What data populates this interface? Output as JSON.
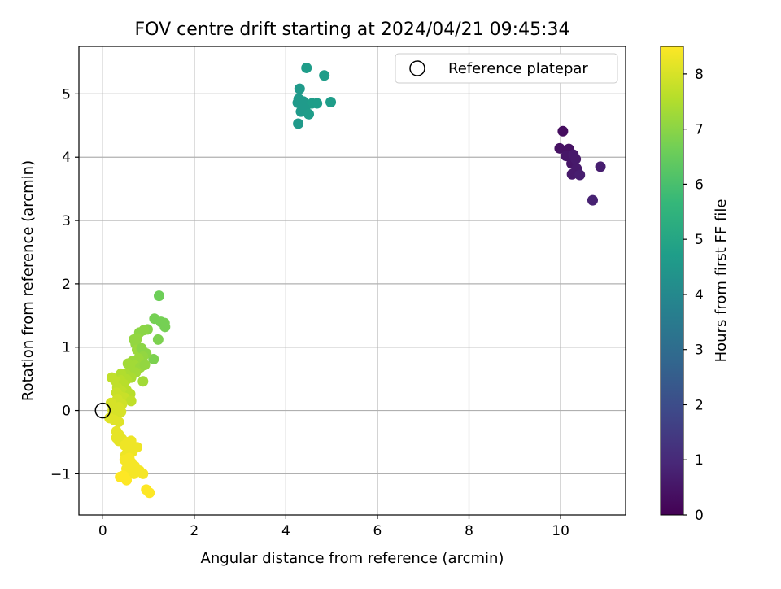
{
  "chart_data": {
    "type": "scatter",
    "title": "FOV centre drift starting at 2024/04/21 09:45:34",
    "xlabel": "Angular distance from reference (arcmin)",
    "ylabel": "Rotation from reference (arcmin)",
    "xlim": [
      -0.52,
      11.42
    ],
    "ylim": [
      -1.65,
      5.75
    ],
    "xticks": [
      0,
      2,
      4,
      6,
      8,
      10
    ],
    "yticks": [
      -1,
      0,
      1,
      2,
      3,
      4,
      5
    ],
    "grid": true,
    "legend": {
      "placement": "top-right",
      "entries": [
        "Reference platepar"
      ]
    },
    "reference_point": {
      "x": 0,
      "y": 0
    },
    "colorbar": {
      "label": "Hours from first FF file",
      "colormap": "viridis",
      "range": [
        0,
        8.5
      ],
      "ticks": [
        0,
        1,
        2,
        3,
        4,
        5,
        6,
        7,
        8
      ],
      "stops": [
        "#440154",
        "#482878",
        "#3e4989",
        "#31688e",
        "#26828e",
        "#1f9e89",
        "#35b779",
        "#6ece58",
        "#b5de2b",
        "#fde725"
      ]
    },
    "series": [
      {
        "points": [
          {
            "x": 10.05,
            "y": 4.41,
            "c": 0.3
          },
          {
            "x": 9.98,
            "y": 4.14,
            "c": 0.4
          },
          {
            "x": 10.18,
            "y": 4.13,
            "c": 0.4
          },
          {
            "x": 10.12,
            "y": 4.02,
            "c": 0.5
          },
          {
            "x": 10.28,
            "y": 4.04,
            "c": 0.6
          },
          {
            "x": 10.24,
            "y": 3.9,
            "c": 0.5
          },
          {
            "x": 10.33,
            "y": 3.97,
            "c": 0.6
          },
          {
            "x": 10.35,
            "y": 3.82,
            "c": 0.6
          },
          {
            "x": 10.25,
            "y": 3.73,
            "c": 0.6
          },
          {
            "x": 10.42,
            "y": 3.72,
            "c": 0.7
          },
          {
            "x": 10.87,
            "y": 3.85,
            "c": 0.7
          },
          {
            "x": 10.7,
            "y": 3.32,
            "c": 0.8
          },
          {
            "x": 4.45,
            "y": 5.41,
            "c": 4.7
          },
          {
            "x": 4.84,
            "y": 5.29,
            "c": 4.7
          },
          {
            "x": 4.3,
            "y": 5.08,
            "c": 4.6
          },
          {
            "x": 4.28,
            "y": 4.92,
            "c": 4.6
          },
          {
            "x": 4.38,
            "y": 4.88,
            "c": 4.6
          },
          {
            "x": 4.26,
            "y": 4.86,
            "c": 4.6
          },
          {
            "x": 4.57,
            "y": 4.85,
            "c": 4.7
          },
          {
            "x": 4.68,
            "y": 4.85,
            "c": 4.7
          },
          {
            "x": 4.98,
            "y": 4.87,
            "c": 4.7
          },
          {
            "x": 4.42,
            "y": 4.76,
            "c": 4.6
          },
          {
            "x": 4.33,
            "y": 4.72,
            "c": 4.6
          },
          {
            "x": 4.5,
            "y": 4.68,
            "c": 4.7
          },
          {
            "x": 4.27,
            "y": 4.53,
            "c": 4.6
          },
          {
            "x": 1.23,
            "y": 1.81,
            "c": 6.6
          },
          {
            "x": 1.13,
            "y": 1.45,
            "c": 6.7
          },
          {
            "x": 1.27,
            "y": 1.4,
            "c": 6.7
          },
          {
            "x": 1.35,
            "y": 1.38,
            "c": 6.7
          },
          {
            "x": 1.36,
            "y": 1.32,
            "c": 6.7
          },
          {
            "x": 1.21,
            "y": 1.12,
            "c": 6.8
          },
          {
            "x": 1.11,
            "y": 0.81,
            "c": 6.8
          },
          {
            "x": 0.98,
            "y": 1.28,
            "c": 6.9
          },
          {
            "x": 0.9,
            "y": 1.27,
            "c": 7.0
          },
          {
            "x": 0.8,
            "y": 1.23,
            "c": 7.0
          },
          {
            "x": 0.75,
            "y": 1.14,
            "c": 7.1
          },
          {
            "x": 0.68,
            "y": 1.12,
            "c": 7.1
          },
          {
            "x": 0.72,
            "y": 1.05,
            "c": 7.1
          },
          {
            "x": 0.75,
            "y": 0.96,
            "c": 7.2
          },
          {
            "x": 0.85,
            "y": 0.98,
            "c": 7.0
          },
          {
            "x": 0.95,
            "y": 0.9,
            "c": 7.0
          },
          {
            "x": 0.88,
            "y": 0.85,
            "c": 7.1
          },
          {
            "x": 0.78,
            "y": 0.82,
            "c": 7.2
          },
          {
            "x": 0.65,
            "y": 0.78,
            "c": 7.2
          },
          {
            "x": 0.55,
            "y": 0.74,
            "c": 7.3
          },
          {
            "x": 0.7,
            "y": 0.71,
            "c": 7.3
          },
          {
            "x": 0.82,
            "y": 0.68,
            "c": 7.2
          },
          {
            "x": 0.92,
            "y": 0.72,
            "c": 7.1
          },
          {
            "x": 0.6,
            "y": 0.62,
            "c": 7.3
          },
          {
            "x": 0.72,
            "y": 0.6,
            "c": 7.3
          },
          {
            "x": 0.5,
            "y": 0.58,
            "c": 7.4
          },
          {
            "x": 0.4,
            "y": 0.58,
            "c": 7.5
          },
          {
            "x": 0.62,
            "y": 0.52,
            "c": 7.4
          },
          {
            "x": 0.88,
            "y": 0.46,
            "c": 7.3
          },
          {
            "x": 0.52,
            "y": 0.49,
            "c": 7.5
          },
          {
            "x": 0.38,
            "y": 0.48,
            "c": 7.6
          },
          {
            "x": 0.2,
            "y": 0.52,
            "c": 7.7
          },
          {
            "x": 0.3,
            "y": 0.45,
            "c": 7.7
          },
          {
            "x": 0.45,
            "y": 0.42,
            "c": 7.6
          },
          {
            "x": 0.32,
            "y": 0.36,
            "c": 7.7
          },
          {
            "x": 0.52,
            "y": 0.32,
            "c": 7.6
          },
          {
            "x": 0.42,
            "y": 0.3,
            "c": 7.7
          },
          {
            "x": 0.3,
            "y": 0.28,
            "c": 7.8
          },
          {
            "x": 0.6,
            "y": 0.26,
            "c": 7.6
          },
          {
            "x": 0.38,
            "y": 0.22,
            "c": 7.8
          },
          {
            "x": 0.48,
            "y": 0.2,
            "c": 7.8
          },
          {
            "x": 0.32,
            "y": 0.18,
            "c": 7.9
          },
          {
            "x": 0.62,
            "y": 0.15,
            "c": 7.7
          },
          {
            "x": 0.25,
            "y": 0.12,
            "c": 7.9
          },
          {
            "x": 0.18,
            "y": 0.12,
            "c": 8.0
          },
          {
            "x": 0.42,
            "y": 0.1,
            "c": 7.9
          },
          {
            "x": 0.35,
            "y": 0.05,
            "c": 8.0
          },
          {
            "x": 0.22,
            "y": 0.0,
            "c": 8.0
          },
          {
            "x": 0.28,
            "y": -0.05,
            "c": 8.0
          },
          {
            "x": 0.4,
            "y": -0.02,
            "c": 8.0
          },
          {
            "x": 0.15,
            "y": -0.12,
            "c": 8.1
          },
          {
            "x": 0.25,
            "y": -0.15,
            "c": 8.1
          },
          {
            "x": 0.35,
            "y": -0.18,
            "c": 8.1
          },
          {
            "x": 0.3,
            "y": -0.33,
            "c": 8.2
          },
          {
            "x": 0.35,
            "y": -0.38,
            "c": 8.2
          },
          {
            "x": 0.3,
            "y": -0.43,
            "c": 8.2
          },
          {
            "x": 0.42,
            "y": -0.45,
            "c": 8.2
          },
          {
            "x": 0.35,
            "y": -0.48,
            "c": 8.2
          },
          {
            "x": 0.55,
            "y": -0.5,
            "c": 8.3
          },
          {
            "x": 0.62,
            "y": -0.48,
            "c": 8.3
          },
          {
            "x": 0.48,
            "y": -0.55,
            "c": 8.3
          },
          {
            "x": 0.58,
            "y": -0.58,
            "c": 8.3
          },
          {
            "x": 0.75,
            "y": -0.58,
            "c": 8.3
          },
          {
            "x": 0.65,
            "y": -0.65,
            "c": 8.3
          },
          {
            "x": 0.5,
            "y": -0.7,
            "c": 8.3
          },
          {
            "x": 0.58,
            "y": -0.75,
            "c": 8.4
          },
          {
            "x": 0.48,
            "y": -0.78,
            "c": 8.4
          },
          {
            "x": 0.62,
            "y": -0.82,
            "c": 8.4
          },
          {
            "x": 0.55,
            "y": -0.85,
            "c": 8.4
          },
          {
            "x": 0.7,
            "y": -0.88,
            "c": 8.4
          },
          {
            "x": 0.52,
            "y": -0.92,
            "c": 8.4
          },
          {
            "x": 0.62,
            "y": -0.95,
            "c": 8.4
          },
          {
            "x": 0.72,
            "y": -0.92,
            "c": 8.4
          },
          {
            "x": 0.8,
            "y": -0.95,
            "c": 8.4
          },
          {
            "x": 0.68,
            "y": -1.0,
            "c": 8.4
          },
          {
            "x": 0.88,
            "y": -1.0,
            "c": 8.4
          },
          {
            "x": 0.45,
            "y": -1.03,
            "c": 8.5
          },
          {
            "x": 0.38,
            "y": -1.05,
            "c": 8.5
          },
          {
            "x": 0.52,
            "y": -1.1,
            "c": 8.5
          },
          {
            "x": 0.95,
            "y": -1.25,
            "c": 8.5
          },
          {
            "x": 1.02,
            "y": -1.3,
            "c": 8.5
          }
        ]
      }
    ]
  }
}
